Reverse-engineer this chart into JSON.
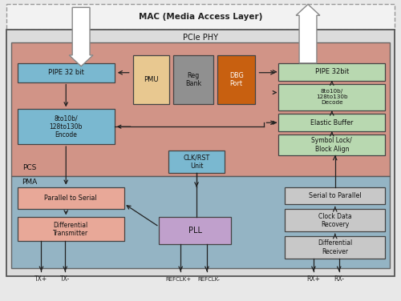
{
  "title": "MAC (Media Access Layer)",
  "pcie_phy_label": "PCIe PHY",
  "pcs_label": "PCS",
  "pma_label": "PMA",
  "bg_color": "#e8e8e8",
  "mac_bg": "#f0f0f0",
  "pcs_bg": "#d4857a",
  "pma_bg": "#90b8cc",
  "pcie_phy_bg": "#e0e0e0",
  "block_blue": "#7ab8d0",
  "block_green": "#b8d8b0",
  "block_pink": "#e8a898",
  "block_peach": "#e8c890",
  "block_gray": "#909090",
  "block_orange": "#c86010",
  "block_purple": "#c0a0cc",
  "block_lightgray": "#c8c8c8",
  "arrow_color": "#222222",
  "text_color": "#111111",
  "border_color": "#555555",
  "white_arrow_color": "#ffffff"
}
